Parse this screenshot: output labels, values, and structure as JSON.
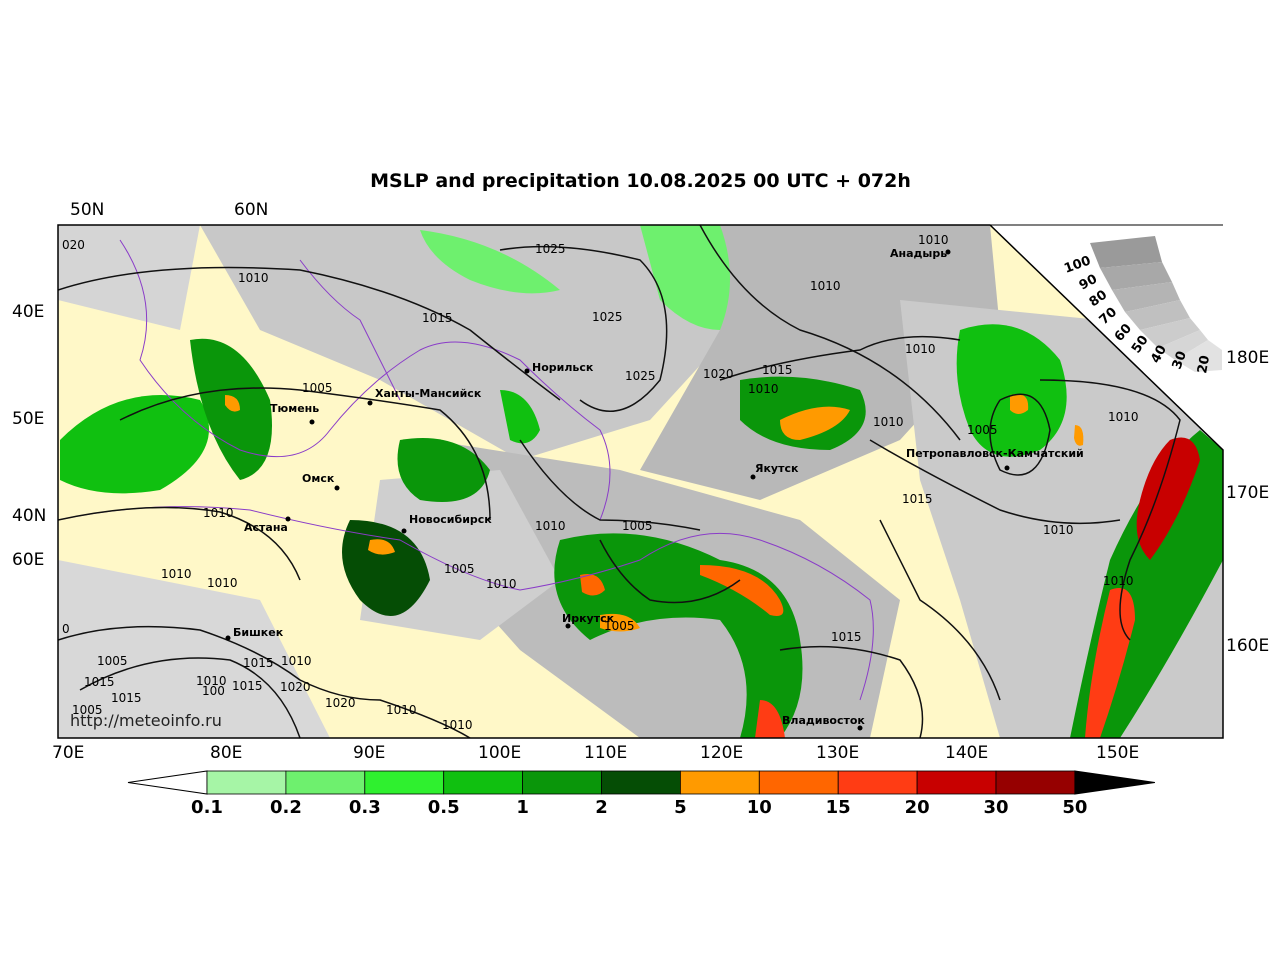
{
  "title": "MSLP and precipitation 10.08.2025 00 UTC + 072h",
  "credit": "http://meteoinfo.ru",
  "colors": {
    "land_bg": "#fff8c8",
    "cloud_gray": "#b5b5b5",
    "cloud_light": "#dcdcdc",
    "isobar": "#111111",
    "borders": "#8a3cc8",
    "precip": [
      "#a6f5a6",
      "#6ef06e",
      "#2ff02f",
      "#10c010",
      "#0a960a",
      "#054d05",
      "#ff9a00",
      "#ff6600",
      "#ff3c14",
      "#c80000",
      "#960000",
      "#000000"
    ]
  },
  "axis_labels": {
    "top": [
      "50N",
      "60N"
    ],
    "left": [
      "40E",
      "50E",
      "40N",
      "60E"
    ],
    "bottom": [
      "70E",
      "80E",
      "90E",
      "100E",
      "110E",
      "120E",
      "130E",
      "140E",
      "150E"
    ],
    "right": [
      "180E",
      "170E",
      "160E"
    ]
  },
  "cities": [
    {
      "name": "Анадырь"
    },
    {
      "name": "Норильск"
    },
    {
      "name": "Ханты-Мансийск"
    },
    {
      "name": "Тюмень"
    },
    {
      "name": "Омск"
    },
    {
      "name": "Астана"
    },
    {
      "name": "Новосибирск"
    },
    {
      "name": "Якутск"
    },
    {
      "name": "Петропавловск-Камчатский"
    },
    {
      "name": "Иркутск"
    },
    {
      "name": "Бишкек"
    },
    {
      "name": "Владивосток"
    }
  ],
  "isobar_labels": [
    "1010",
    "1025",
    "020",
    "1010",
    "1015",
    "1025",
    "1010",
    "1025",
    "1005",
    "1020",
    "1015",
    "1010",
    "1010",
    "1010",
    "1010",
    "1005",
    "1010",
    "1010",
    "1015",
    "1010",
    "1010",
    "1005",
    "1010",
    "1005",
    "1010",
    "1010",
    "1005",
    "1015",
    "1010",
    "1015",
    "1020",
    "1015",
    "1020",
    "1010",
    "1010",
    "1015",
    "0",
    "1005",
    "1015",
    "1005",
    "1010",
    "100",
    "1010"
  ],
  "colorbar": {
    "ticks": [
      "0.1",
      "0.2",
      "0.3",
      "0.5",
      "1",
      "2",
      "5",
      "10",
      "15",
      "20",
      "30",
      "50"
    ]
  },
  "cloud_scale": {
    "ticks": [
      "100",
      "90",
      "80",
      "70",
      "60",
      "50",
      "40",
      "30",
      "20"
    ]
  }
}
